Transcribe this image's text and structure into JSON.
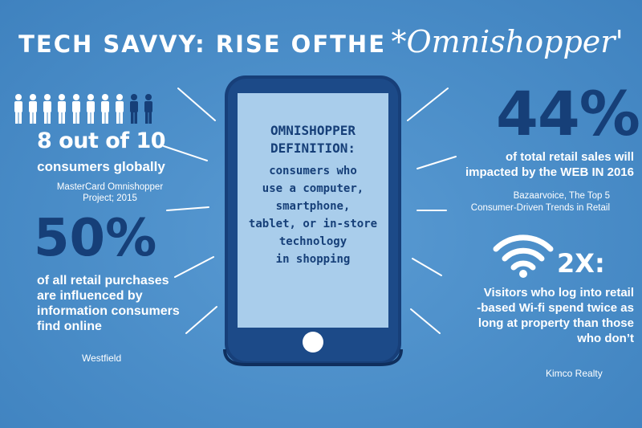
{
  "title": {
    "main": "TECH SAVVY: RISE OFTHE",
    "script": "*Omnishopper'"
  },
  "left_top": {
    "ratio": "8 out of 10",
    "desc": "consumers globally",
    "source": "MasterCard Omnishopper Project; 2015",
    "people_total": 10,
    "people_highlight": 8
  },
  "left_bottom": {
    "percent": "50%",
    "desc_lines": [
      "of all retail purchases",
      "are influenced by",
      "information consumers",
      "find online"
    ],
    "source": "Westfield"
  },
  "phone": {
    "heading_lines": [
      "OMNISHOPPER",
      "DEFINITION:"
    ],
    "body_lines": [
      "consumers who",
      "use a computer,",
      "smartphone,",
      "tablet, or in-store",
      "technology",
      "in shopping"
    ]
  },
  "right_top": {
    "percent": "44%",
    "desc_lines": [
      "of total retail sales will",
      "impacted by the WEB IN 2016"
    ],
    "source_lines": [
      "Bazaarvoice, The Top 5",
      "Consumer-Driven Trends in Retail"
    ]
  },
  "right_bottom": {
    "multiplier": "2X:",
    "desc_lines": [
      "Visitors who log into retail",
      "-based Wi-fi spend twice as",
      "long at property than those",
      "who don’t"
    ],
    "source": "Kimco Realty"
  },
  "colors": {
    "background": "#4a8dc8",
    "navy": "#163f78",
    "screen": "#a9cdeb",
    "white": "#ffffff"
  },
  "icons": [
    "person-icon",
    "wifi-icon",
    "phone-icon"
  ]
}
